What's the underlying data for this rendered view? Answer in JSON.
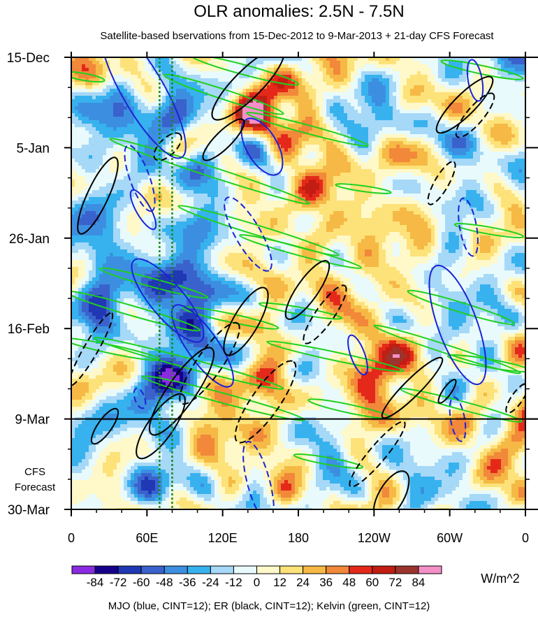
{
  "chart_data": {
    "type": "heatmap",
    "title": "OLR anomalies: 2.5N - 7.5N",
    "subtitle": "Satellite-based bservations from 15-Dec-2012 to 9-Mar-2013 + 21-day CFS Forecast",
    "x_ticks": [
      "0",
      "60E",
      "120E",
      "180",
      "120W",
      "60W",
      "0"
    ],
    "x_range": [
      0,
      360
    ],
    "y_ticks": [
      "15-Dec",
      "5-Jan",
      "26-Jan",
      "16-Feb",
      "9-Mar",
      "30-Mar"
    ],
    "y_range": [
      "2012-12-15",
      "2013-03-30"
    ],
    "observation_end": "9-Mar",
    "forecast_label": [
      "CFS",
      "Forecast"
    ],
    "colorbar": {
      "unit": "W/m^2",
      "labels": [
        "-84",
        "-72",
        "-60",
        "-48",
        "-36",
        "-24",
        "-12",
        "0",
        "12",
        "24",
        "36",
        "48",
        "60",
        "72",
        "84"
      ],
      "colors": [
        "#8a2be2",
        "#16008a",
        "#2038b4",
        "#3a62cc",
        "#3c8fe0",
        "#37b2ef",
        "#a6d8f7",
        "#e8fafc",
        "#fff8c8",
        "#fde27a",
        "#f6b945",
        "#f1883a",
        "#e4291a",
        "#c21d12",
        "#9c342e",
        "#f48fc8"
      ]
    },
    "contour_legend": "MJO (blue, CINT=12); ER (black, CINT=12); Kelvin (green, CINT=12)",
    "contour_colors": {
      "mjo": "#1a23d6",
      "er": "#000000",
      "kelvin": "#1ed11e",
      "reference": "#1a8a1a"
    },
    "reference_longitudes": [
      70,
      80
    ]
  }
}
